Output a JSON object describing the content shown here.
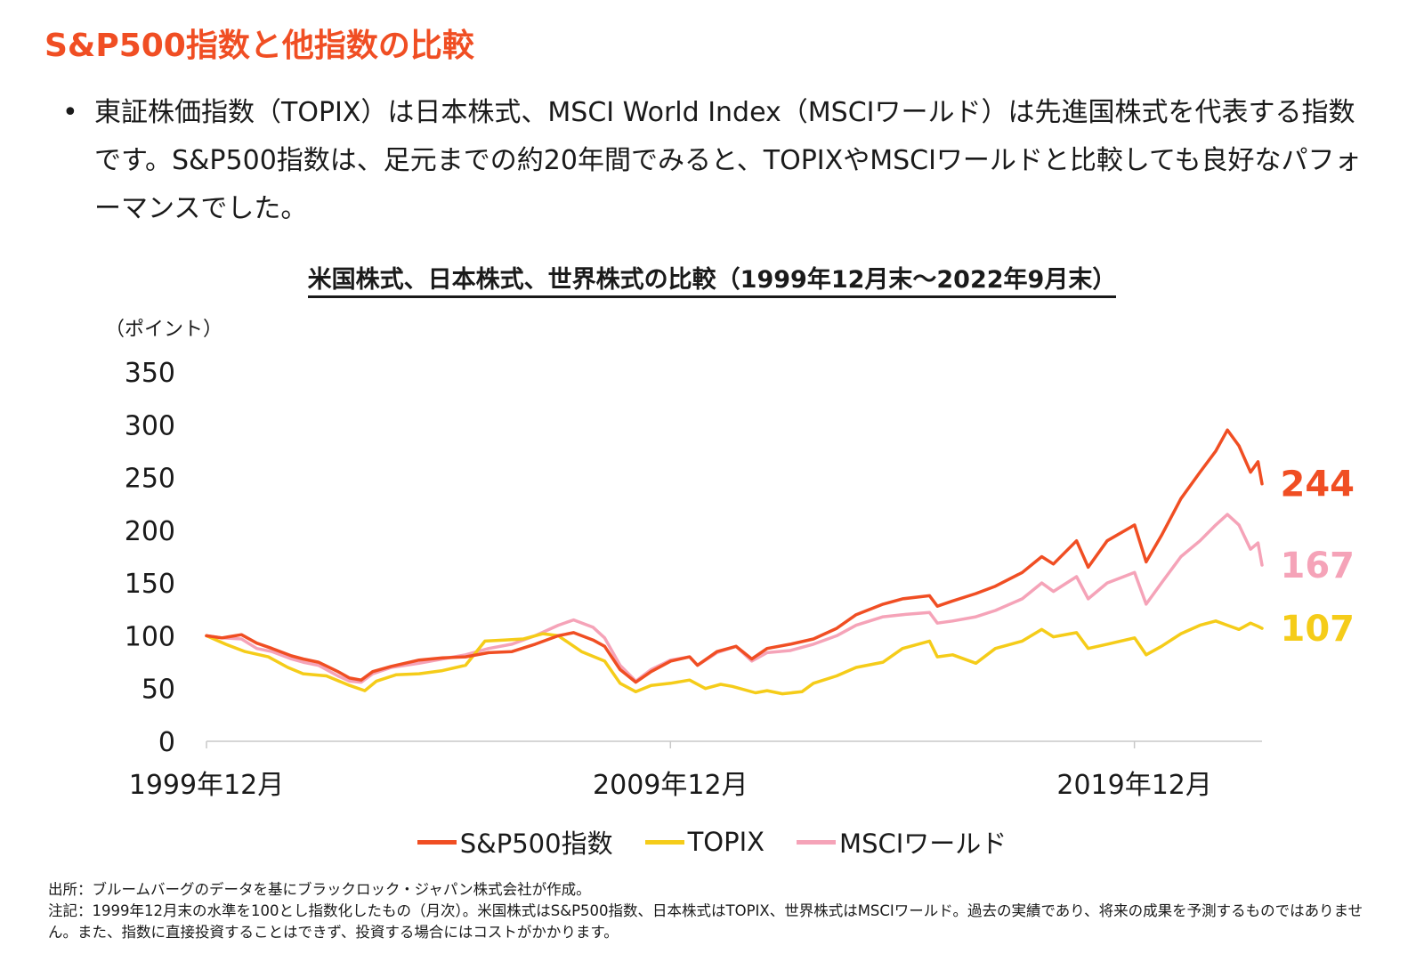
{
  "page": {
    "title": "S&P500指数と他指数の比較",
    "bullet_marker": "•",
    "bullet_text": "東証株価指数（TOPIX）は日本株式、MSCI World Index（MSCIワールド）は先進国株式を代表する指数です。S&P500指数は、足元までの約20年間でみると、TOPIXやMSCIワールドと比較しても良好なパフォーマンスでした。",
    "chart_title": "米国株式、日本株式、世界株式の比較（1999年12月末～2022年9月末）",
    "y_unit": "（ポイント）",
    "source_note": "出所：ブルームバーグのデータを基にブラックロック・ジャパン株式会社が作成。",
    "annotation_note": "注記：1999年12月末の水準を100とし指数化したもの（月次）。米国株式はS&P500指数、日本株式はTOPIX、世界株式はMSCIワールド。過去の実績であり、将来の成果を予測するものではありません。また、指数に直接投資することはできず、投資する場合にはコストがかかります。"
  },
  "chart_data": {
    "type": "line",
    "title": "米国株式、日本株式、世界株式の比較（1999年12月末～2022年9月末）",
    "ylabel": "（ポイント）",
    "xlabel": "",
    "ylim": [
      0,
      350
    ],
    "yticks": [
      "0",
      "50",
      "100",
      "150",
      "200",
      "250",
      "300",
      "350"
    ],
    "xlim": [
      1999.917,
      2022.667
    ],
    "xticks": [
      {
        "x": 1999.917,
        "label": "1999年12月"
      },
      {
        "x": 2009.917,
        "label": "2009年12月"
      },
      {
        "x": 2019.917,
        "label": "2019年12月"
      }
    ],
    "grid": false,
    "legend": "bottom",
    "series": [
      {
        "name": "S&P500指数",
        "color": "#f04e23",
        "end_label": "244",
        "points": [
          [
            1999.917,
            100
          ],
          [
            2000.25,
            98
          ],
          [
            2000.67,
            101
          ],
          [
            2001.0,
            93
          ],
          [
            2001.33,
            88
          ],
          [
            2001.75,
            81
          ],
          [
            2002.0,
            78
          ],
          [
            2002.33,
            75
          ],
          [
            2002.75,
            66
          ],
          [
            2003.0,
            60
          ],
          [
            2003.25,
            58
          ],
          [
            2003.5,
            66
          ],
          [
            2003.9,
            71
          ],
          [
            2004.5,
            77
          ],
          [
            2005.0,
            79
          ],
          [
            2005.5,
            80
          ],
          [
            2006.0,
            84
          ],
          [
            2006.5,
            85
          ],
          [
            2007.0,
            92
          ],
          [
            2007.5,
            100
          ],
          [
            2007.83,
            103
          ],
          [
            2008.25,
            96
          ],
          [
            2008.5,
            90
          ],
          [
            2008.83,
            68
          ],
          [
            2009.17,
            56
          ],
          [
            2009.5,
            66
          ],
          [
            2009.92,
            76
          ],
          [
            2010.33,
            80
          ],
          [
            2010.5,
            72
          ],
          [
            2010.92,
            85
          ],
          [
            2011.33,
            90
          ],
          [
            2011.67,
            78
          ],
          [
            2012.0,
            88
          ],
          [
            2012.5,
            92
          ],
          [
            2013.0,
            97
          ],
          [
            2013.5,
            107
          ],
          [
            2013.92,
            120
          ],
          [
            2014.5,
            130
          ],
          [
            2014.92,
            135
          ],
          [
            2015.5,
            138
          ],
          [
            2015.67,
            128
          ],
          [
            2016.0,
            133
          ],
          [
            2016.5,
            140
          ],
          [
            2016.92,
            147
          ],
          [
            2017.5,
            160
          ],
          [
            2017.92,
            175
          ],
          [
            2018.17,
            168
          ],
          [
            2018.67,
            190
          ],
          [
            2018.92,
            165
          ],
          [
            2019.33,
            190
          ],
          [
            2019.92,
            205
          ],
          [
            2020.17,
            170
          ],
          [
            2020.5,
            195
          ],
          [
            2020.92,
            230
          ],
          [
            2021.33,
            255
          ],
          [
            2021.67,
            275
          ],
          [
            2021.92,
            295
          ],
          [
            2022.17,
            280
          ],
          [
            2022.42,
            255
          ],
          [
            2022.58,
            265
          ],
          [
            2022.667,
            244
          ]
        ]
      },
      {
        "name": "TOPIX",
        "color": "#f5cc19",
        "end_label": "107",
        "points": [
          [
            1999.917,
            100
          ],
          [
            2000.33,
            92
          ],
          [
            2000.75,
            85
          ],
          [
            2001.25,
            80
          ],
          [
            2001.67,
            70
          ],
          [
            2002.0,
            64
          ],
          [
            2002.5,
            62
          ],
          [
            2003.0,
            53
          ],
          [
            2003.33,
            48
          ],
          [
            2003.58,
            57
          ],
          [
            2004.0,
            63
          ],
          [
            2004.5,
            64
          ],
          [
            2005.0,
            67
          ],
          [
            2005.5,
            72
          ],
          [
            2005.92,
            95
          ],
          [
            2006.33,
            96
          ],
          [
            2006.75,
            97
          ],
          [
            2007.17,
            102
          ],
          [
            2007.5,
            100
          ],
          [
            2008.0,
            85
          ],
          [
            2008.5,
            76
          ],
          [
            2008.83,
            55
          ],
          [
            2009.17,
            47
          ],
          [
            2009.5,
            53
          ],
          [
            2009.92,
            55
          ],
          [
            2010.33,
            58
          ],
          [
            2010.67,
            50
          ],
          [
            2011.0,
            54
          ],
          [
            2011.25,
            52
          ],
          [
            2011.75,
            46
          ],
          [
            2012.0,
            48
          ],
          [
            2012.33,
            45
          ],
          [
            2012.75,
            47
          ],
          [
            2013.0,
            55
          ],
          [
            2013.5,
            62
          ],
          [
            2013.92,
            70
          ],
          [
            2014.5,
            75
          ],
          [
            2014.92,
            88
          ],
          [
            2015.5,
            95
          ],
          [
            2015.67,
            80
          ],
          [
            2016.0,
            82
          ],
          [
            2016.5,
            74
          ],
          [
            2016.92,
            88
          ],
          [
            2017.5,
            95
          ],
          [
            2017.92,
            106
          ],
          [
            2018.17,
            99
          ],
          [
            2018.67,
            103
          ],
          [
            2018.92,
            88
          ],
          [
            2019.33,
            92
          ],
          [
            2019.92,
            98
          ],
          [
            2020.17,
            82
          ],
          [
            2020.5,
            90
          ],
          [
            2020.92,
            102
          ],
          [
            2021.33,
            110
          ],
          [
            2021.67,
            114
          ],
          [
            2021.92,
            110
          ],
          [
            2022.17,
            106
          ],
          [
            2022.42,
            112
          ],
          [
            2022.58,
            109
          ],
          [
            2022.667,
            107
          ]
        ]
      },
      {
        "name": "MSCIワールド",
        "color": "#f5a3b8",
        "end_label": "167",
        "points": [
          [
            1999.917,
            100
          ],
          [
            2000.25,
            98
          ],
          [
            2000.67,
            97
          ],
          [
            2001.0,
            88
          ],
          [
            2001.33,
            85
          ],
          [
            2001.75,
            78
          ],
          [
            2002.0,
            75
          ],
          [
            2002.33,
            72
          ],
          [
            2002.75,
            62
          ],
          [
            2003.0,
            57
          ],
          [
            2003.25,
            56
          ],
          [
            2003.5,
            64
          ],
          [
            2003.9,
            70
          ],
          [
            2004.5,
            74
          ],
          [
            2005.0,
            78
          ],
          [
            2005.5,
            82
          ],
          [
            2006.0,
            88
          ],
          [
            2006.5,
            92
          ],
          [
            2007.0,
            100
          ],
          [
            2007.5,
            110
          ],
          [
            2007.83,
            115
          ],
          [
            2008.25,
            108
          ],
          [
            2008.5,
            98
          ],
          [
            2008.83,
            72
          ],
          [
            2009.17,
            57
          ],
          [
            2009.5,
            68
          ],
          [
            2009.92,
            77
          ],
          [
            2010.33,
            80
          ],
          [
            2010.5,
            72
          ],
          [
            2010.92,
            84
          ],
          [
            2011.33,
            90
          ],
          [
            2011.67,
            76
          ],
          [
            2012.0,
            84
          ],
          [
            2012.5,
            86
          ],
          [
            2013.0,
            92
          ],
          [
            2013.5,
            100
          ],
          [
            2013.92,
            110
          ],
          [
            2014.5,
            118
          ],
          [
            2014.92,
            120
          ],
          [
            2015.5,
            122
          ],
          [
            2015.67,
            112
          ],
          [
            2016.0,
            114
          ],
          [
            2016.5,
            118
          ],
          [
            2016.92,
            124
          ],
          [
            2017.5,
            135
          ],
          [
            2017.92,
            150
          ],
          [
            2018.17,
            142
          ],
          [
            2018.67,
            156
          ],
          [
            2018.92,
            135
          ],
          [
            2019.33,
            150
          ],
          [
            2019.92,
            160
          ],
          [
            2020.17,
            130
          ],
          [
            2020.5,
            150
          ],
          [
            2020.92,
            175
          ],
          [
            2021.33,
            190
          ],
          [
            2021.67,
            205
          ],
          [
            2021.92,
            215
          ],
          [
            2022.17,
            205
          ],
          [
            2022.42,
            182
          ],
          [
            2022.58,
            188
          ],
          [
            2022.667,
            167
          ]
        ]
      }
    ]
  }
}
